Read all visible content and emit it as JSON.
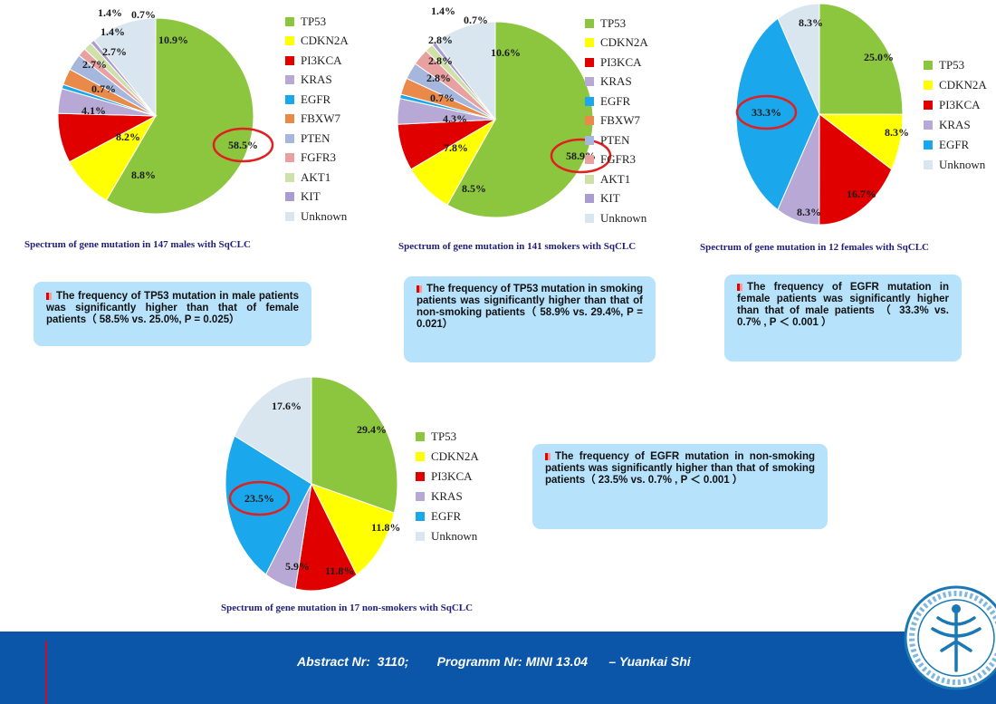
{
  "colors": {
    "TP53": "#8cc63f",
    "CDKN2A": "#ffff00",
    "PI3KCA": "#e00000",
    "KRAS": "#b7a8d6",
    "EGFR": "#1aa7ec",
    "FBXW7": "#e98a4a",
    "PTEN": "#a6b7de",
    "FGFR3": "#e8a0a0",
    "AKT1": "#cfe0a8",
    "KIT": "#a99cd0",
    "Unknown": "#d9e6f0",
    "highlight_ring": "#e02020",
    "note_bg": "#b7e2fb",
    "caption_text": "#1f1f7a",
    "footer_bg": "#0b56a8",
    "footer_rule": "#c8102e"
  },
  "chart_data": [
    {
      "type": "pie",
      "id": "males",
      "title": "Spectrum of gene mutation in 147  males with SqCLC",
      "highlight": "58.5%",
      "slices": [
        {
          "label": "TP53",
          "value": 58.5,
          "text": "58.5%"
        },
        {
          "label": "CDKN2A",
          "value": 8.8,
          "text": "8.8%"
        },
        {
          "label": "PI3KCA",
          "value": 8.2,
          "text": "8.2%"
        },
        {
          "label": "KRAS",
          "value": 4.1,
          "text": "4.1%"
        },
        {
          "label": "EGFR",
          "value": 0.7,
          "text": "0.7%"
        },
        {
          "label": "FBXW7",
          "value": 2.7,
          "text": "2.7%"
        },
        {
          "label": "PTEN",
          "value": 2.7,
          "text": "2.7%"
        },
        {
          "label": "FGFR3",
          "value": 1.4,
          "text": "1.4%"
        },
        {
          "label": "AKT1",
          "value": 1.4,
          "text": "1.4%"
        },
        {
          "label": "KIT",
          "value": 0.7,
          "text": "0.7%"
        },
        {
          "label": "Unknown",
          "value": 10.9,
          "text": "10.9%"
        }
      ],
      "legend": [
        "TP53",
        "CDKN2A",
        "PI3KCA",
        "KRAS",
        "EGFR",
        "FBXW7",
        "PTEN",
        "FGFR3",
        "AKT1",
        "KIT",
        "Unknown"
      ]
    },
    {
      "type": "pie",
      "id": "smokers",
      "title": "Spectrum of gene mutation in 141 smokers with SqCLC",
      "highlight": "58.9%",
      "slices": [
        {
          "label": "TP53",
          "value": 58.9,
          "text": "58.9%"
        },
        {
          "label": "CDKN2A",
          "value": 8.5,
          "text": "8.5%"
        },
        {
          "label": "PI3KCA",
          "value": 7.8,
          "text": "7.8%"
        },
        {
          "label": "KRAS",
          "value": 4.3,
          "text": "4.3%"
        },
        {
          "label": "EGFR",
          "value": 0.7,
          "text": "0.7%"
        },
        {
          "label": "FBXW7",
          "value": 2.8,
          "text": "2.8%"
        },
        {
          "label": "PTEN",
          "value": 2.8,
          "text": "2.8%"
        },
        {
          "label": "FGFR3",
          "value": 2.8,
          "text": "2.8%"
        },
        {
          "label": "AKT1",
          "value": 1.4,
          "text": "1.4%"
        },
        {
          "label": "KIT",
          "value": 0.7,
          "text": "0.7%"
        },
        {
          "label": "Unknown",
          "value": 10.6,
          "text": "10.6%"
        }
      ],
      "legend": [
        "TP53",
        "CDKN2A",
        "PI3KCA",
        "KRAS",
        "EGFR",
        "FBXW7",
        "PTEN",
        "FGFR3",
        "AKT1",
        "KIT",
        "Unknown"
      ]
    },
    {
      "type": "pie",
      "id": "females",
      "title": "Spectrum of gene mutation in 12  females with SqCLC",
      "highlight": "33.3%",
      "slices": [
        {
          "label": "TP53",
          "value": 25.0,
          "text": "25.0%"
        },
        {
          "label": "CDKN2A",
          "value": 8.3,
          "text": "8.3%"
        },
        {
          "label": "PI3KCA",
          "value": 16.7,
          "text": "16.7%"
        },
        {
          "label": "KRAS",
          "value": 8.3,
          "text": "8.3%"
        },
        {
          "label": "EGFR",
          "value": 33.3,
          "text": "33.3%"
        },
        {
          "label": "Unknown",
          "value": 8.3,
          "text": "8.3%"
        }
      ],
      "legend": [
        "TP53",
        "CDKN2A",
        "PI3KCA",
        "KRAS",
        "EGFR",
        "Unknown"
      ]
    },
    {
      "type": "pie",
      "id": "nonsmokers",
      "title": "Spectrum of gene mutation in 17  non-smokers with SqCLC",
      "highlight": "23.5%",
      "slices": [
        {
          "label": "TP53",
          "value": 29.4,
          "text": "29.4%"
        },
        {
          "label": "CDKN2A",
          "value": 11.8,
          "text": "11.8%"
        },
        {
          "label": "PI3KCA",
          "value": 11.8,
          "text": "11.8%"
        },
        {
          "label": "KRAS",
          "value": 5.9,
          "text": "5.9%"
        },
        {
          "label": "EGFR",
          "value": 23.5,
          "text": "23.5%"
        },
        {
          "label": "Unknown",
          "value": 17.6,
          "text": "17.6%"
        }
      ],
      "legend": [
        "TP53",
        "CDKN2A",
        "PI3KCA",
        "KRAS",
        "EGFR",
        "Unknown"
      ]
    }
  ],
  "notes": {
    "males": "The frequency of TP53 mutation  in male patients was significantly higher than that of   female patients（ 58.5%  vs. 25.0%,  P = 0.025）",
    "smokers": "The frequency of TP53 mutation  in smoking patients was significantly higher than that of   non-smoking patients（ 58.9%  vs. 29.4%,  P = 0.021）",
    "females": "The frequency of  EGFR mutation  in female patients was significantly higher than that of   male patients （ 33.3%  vs. 0.7% ,  P ＜ 0.001 ）",
    "nonsmokers": "The frequency of  EGFR mutation  in non-smoking patients was significantly higher than that of smoking patients（ 23.5%  vs. 0.7% ,  P ＜ 0.001 ）"
  },
  "footer": {
    "text": "Abstract Nr:  3110;        Programm Nr: MINI 13.04      – Yuankai Shi"
  }
}
